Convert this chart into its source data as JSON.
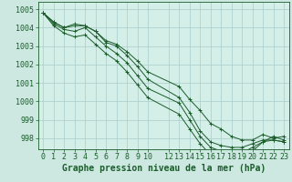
{
  "xlabel": "Graphe pression niveau de la mer (hPa)",
  "background_color": "#cce8e0",
  "grid_color": "#aacccc",
  "line_color": "#1a5c2a",
  "plot_bg": "#d4eee8",
  "ylim": [
    997.4,
    1005.4
  ],
  "xlim": [
    -0.5,
    23.5
  ],
  "yticks": [
    998,
    999,
    1000,
    1001,
    1002,
    1003,
    1004,
    1005
  ],
  "xtick_positions": [
    0,
    1,
    2,
    3,
    4,
    5,
    6,
    7,
    8,
    9,
    10,
    12,
    13,
    14,
    15,
    16,
    17,
    18,
    19,
    20,
    21,
    22,
    23
  ],
  "xtick_labels": [
    "0",
    "1",
    "2",
    "3",
    "4",
    "5",
    "6",
    "7",
    "8",
    "9",
    "10",
    "12",
    "13",
    "14",
    "15",
    "16",
    "17",
    "18",
    "19",
    "20",
    "21",
    "22",
    "23"
  ],
  "series": [
    [
      1004.8,
      1004.3,
      1004.0,
      1004.2,
      1004.1,
      1003.8,
      1003.3,
      1003.1,
      1002.7,
      1002.2,
      1001.6,
      null,
      1000.8,
      1000.1,
      999.5,
      998.8,
      998.5,
      998.1,
      997.9,
      997.9,
      998.2,
      998.0,
      998.1,
      997.9
    ],
    [
      1004.8,
      1004.3,
      1004.0,
      1004.1,
      1004.1,
      1003.8,
      1003.2,
      1003.0,
      1002.5,
      1001.9,
      1001.2,
      null,
      1000.2,
      999.4,
      998.4,
      997.8,
      997.6,
      997.5,
      997.5,
      997.7,
      997.9,
      997.9,
      997.8,
      997.7
    ],
    [
      1004.8,
      1004.2,
      1003.9,
      1003.8,
      1004.0,
      1003.5,
      1003.0,
      1002.6,
      1002.1,
      1001.4,
      1000.7,
      null,
      999.9,
      999.0,
      998.1,
      997.5,
      997.3,
      997.1,
      997.2,
      997.5,
      997.8,
      997.9,
      997.8,
      997.7
    ],
    [
      1004.8,
      1004.1,
      1003.7,
      1003.5,
      1003.6,
      1003.1,
      1002.6,
      1002.2,
      1001.6,
      1000.9,
      1000.2,
      null,
      999.3,
      998.5,
      997.7,
      997.1,
      996.9,
      996.8,
      996.9,
      997.3,
      997.8,
      998.1,
      997.9,
      997.8
    ]
  ],
  "fontsize_tick": 6,
  "fontsize_label": 7,
  "marker": "+"
}
